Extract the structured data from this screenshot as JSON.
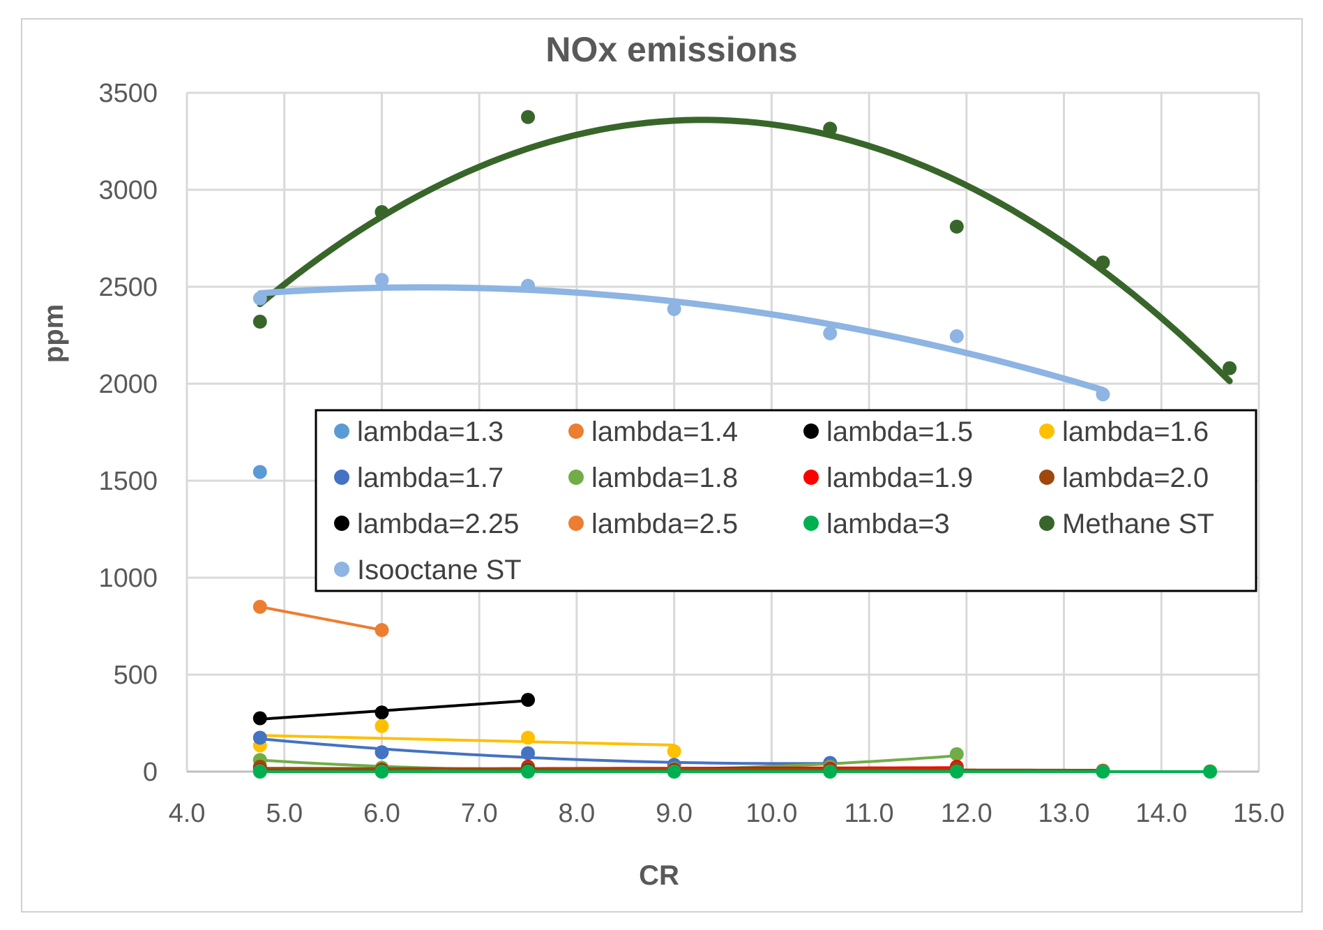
{
  "chart_data": {
    "type": "scatter",
    "title": "NOx emissions",
    "xlabel": "CR",
    "ylabel": "ppm",
    "xlim": [
      4.0,
      15.0
    ],
    "ylim": [
      0,
      3500
    ],
    "xticks": [
      "4.0",
      "5.0",
      "6.0",
      "7.0",
      "8.0",
      "9.0",
      "10.0",
      "11.0",
      "12.0",
      "13.0",
      "14.0",
      "15.0"
    ],
    "yticks": [
      "0",
      "500",
      "1000",
      "1500",
      "2000",
      "2500",
      "3000",
      "3500"
    ],
    "grid": true,
    "legend_position": "center-right inside",
    "series": [
      {
        "name": "lambda=1.3",
        "color": "#5B9BD5",
        "points": [
          [
            4.75,
            1545
          ]
        ],
        "trend": "none"
      },
      {
        "name": "lambda=1.4",
        "color": "#ED7D31",
        "points": [
          [
            4.75,
            850
          ],
          [
            6.0,
            730
          ]
        ],
        "trend": "linear"
      },
      {
        "name": "lambda=1.5",
        "color": "#000000",
        "points": [
          [
            4.75,
            275
          ],
          [
            6.0,
            305
          ],
          [
            7.5,
            370
          ]
        ],
        "trend": "linear"
      },
      {
        "name": "lambda=1.6",
        "color": "#FFC000",
        "points": [
          [
            4.75,
            135
          ],
          [
            6.0,
            235
          ],
          [
            7.5,
            175
          ],
          [
            9.0,
            105
          ]
        ],
        "trend": "linear"
      },
      {
        "name": "lambda=1.7",
        "color": "#4472C4",
        "points": [
          [
            4.75,
            175
          ],
          [
            6.0,
            100
          ],
          [
            7.5,
            95
          ],
          [
            9.0,
            35
          ],
          [
            10.6,
            45
          ]
        ],
        "trend": "poly2"
      },
      {
        "name": "lambda=1.8",
        "color": "#70AD47",
        "points": [
          [
            4.75,
            60
          ],
          [
            6.0,
            20
          ],
          [
            7.5,
            20
          ],
          [
            9.0,
            15
          ],
          [
            10.6,
            25
          ],
          [
            11.9,
            90
          ]
        ],
        "trend": "poly2"
      },
      {
        "name": "lambda=1.9",
        "color": "#FF0000",
        "points": [
          [
            4.75,
            15
          ],
          [
            6.0,
            10
          ],
          [
            7.5,
            25
          ],
          [
            9.0,
            10
          ],
          [
            10.6,
            15
          ],
          [
            11.9,
            25
          ]
        ],
        "trend": "linear"
      },
      {
        "name": "lambda=2.0",
        "color": "#9E480E",
        "points": [
          [
            4.75,
            25
          ],
          [
            6.0,
            5
          ],
          [
            7.5,
            20
          ],
          [
            9.0,
            5
          ],
          [
            10.6,
            10
          ],
          [
            11.9,
            15
          ],
          [
            13.4,
            5
          ]
        ],
        "trend": "linear"
      },
      {
        "name": "lambda=2.25",
        "color": "#000000",
        "points": [
          [
            4.75,
            5
          ],
          [
            6.0,
            3
          ],
          [
            7.5,
            5
          ],
          [
            9.0,
            3
          ],
          [
            10.6,
            3
          ],
          [
            11.9,
            3
          ],
          [
            13.4,
            2
          ]
        ],
        "trend": "none"
      },
      {
        "name": "lambda=2.5",
        "color": "#ED7D31",
        "points": [
          [
            4.75,
            3
          ],
          [
            6.0,
            2
          ],
          [
            7.5,
            2
          ],
          [
            9.0,
            2
          ],
          [
            10.6,
            2
          ],
          [
            11.9,
            2
          ],
          [
            13.4,
            2
          ],
          [
            14.5,
            2
          ]
        ],
        "trend": "none"
      },
      {
        "name": "lambda=3",
        "color": "#00B050",
        "points": [
          [
            4.75,
            0
          ],
          [
            6.0,
            0
          ],
          [
            7.5,
            0
          ],
          [
            9.0,
            0
          ],
          [
            10.6,
            0
          ],
          [
            11.9,
            0
          ],
          [
            13.4,
            0
          ],
          [
            14.5,
            0
          ]
        ],
        "trend": "linear"
      },
      {
        "name": "Methane ST",
        "color": "#38662A",
        "points": [
          [
            4.75,
            2320
          ],
          [
            6.0,
            2885
          ],
          [
            7.5,
            3375
          ],
          [
            10.6,
            3315
          ],
          [
            11.9,
            2810
          ],
          [
            13.4,
            2625
          ],
          [
            14.7,
            2080
          ]
        ],
        "trend": "poly2",
        "trend_range": [
          4.75,
          14.7
        ]
      },
      {
        "name": "Isooctane ST",
        "color": "#8DB4E2",
        "points": [
          [
            4.75,
            2440
          ],
          [
            6.0,
            2535
          ],
          [
            7.5,
            2505
          ],
          [
            9.0,
            2385
          ],
          [
            10.6,
            2260
          ],
          [
            11.9,
            2245
          ],
          [
            13.4,
            1945
          ]
        ],
        "trend": "poly2",
        "trend_range": [
          4.75,
          13.4
        ]
      }
    ]
  }
}
